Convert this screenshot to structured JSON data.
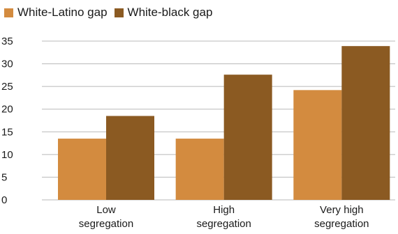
{
  "chart_data": {
    "type": "bar",
    "categories": [
      [
        "Low",
        "segregation"
      ],
      [
        "High",
        "segregation"
      ],
      [
        "Very high",
        "segregation"
      ]
    ],
    "series": [
      {
        "name": "White-Latino gap",
        "color": "#d38b3f",
        "values": [
          13.5,
          13.5,
          24.2
        ]
      },
      {
        "name": "White-black gap",
        "color": "#8b5a22",
        "values": [
          18.5,
          27.6,
          33.9
        ]
      }
    ],
    "ylim": [
      0,
      35
    ],
    "yticks": [
      0,
      5,
      10,
      15,
      20,
      25,
      30,
      35
    ],
    "grid": true,
    "legend_position": "top-left",
    "title": "",
    "xlabel": "",
    "ylabel": ""
  }
}
